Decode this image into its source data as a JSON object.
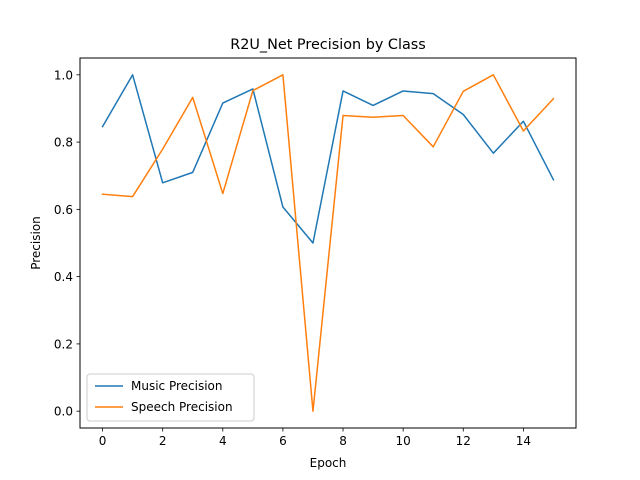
{
  "chart_data": {
    "type": "line",
    "title": "R2U_Net Precision by Class",
    "xlabel": "Epoch",
    "ylabel": "Precision",
    "x": [
      0,
      1,
      2,
      3,
      4,
      5,
      6,
      7,
      8,
      9,
      10,
      11,
      12,
      13,
      14,
      15
    ],
    "xlim": [
      -0.75,
      15.75
    ],
    "ylim": [
      -0.05,
      1.05
    ],
    "xticks": [
      0,
      2,
      4,
      6,
      8,
      10,
      12,
      14
    ],
    "yticks": [
      0.0,
      0.2,
      0.4,
      0.6,
      0.8,
      1.0
    ],
    "xtick_labels": [
      "0",
      "2",
      "4",
      "6",
      "8",
      "10",
      "12",
      "14"
    ],
    "ytick_labels": [
      "0.0",
      "0.2",
      "0.4",
      "0.6",
      "0.8",
      "1.0"
    ],
    "grid": false,
    "legend_position": "lower-left",
    "series": [
      {
        "name": "Music Precision",
        "color": "#1f77b4",
        "values": [
          0.846,
          1.0,
          0.679,
          0.71,
          0.916,
          0.958,
          0.607,
          0.5,
          0.952,
          0.909,
          0.952,
          0.944,
          0.882,
          0.767,
          0.862,
          0.688
        ]
      },
      {
        "name": "Speech Precision",
        "color": "#ff7f0e",
        "values": [
          0.645,
          0.638,
          0.779,
          0.933,
          0.647,
          0.953,
          1.0,
          0.0,
          0.879,
          0.874,
          0.879,
          0.786,
          0.951,
          1.0,
          0.833,
          0.929
        ]
      }
    ]
  }
}
